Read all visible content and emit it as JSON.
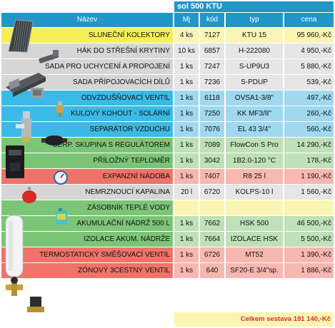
{
  "table": {
    "group_header": "sol 500 KTU",
    "headers": {
      "name": "Název",
      "mj": "Mj",
      "kod": "kód",
      "typ": "typ",
      "cena": "cena"
    },
    "rows": [
      {
        "name": "SLUNEČNÍ KOLEKTORY",
        "mj": "4 ks",
        "kod": "7127",
        "typ": "KTU 15",
        "cena": "95 960,-Kč",
        "group": "yellow"
      },
      {
        "name": "HÁK DO STŘEŠNÍ KRYTINY",
        "mj": "10 ks",
        "kod": "6857",
        "typ": "H-222080",
        "cena": "4 950,-Kč",
        "group": "gray"
      },
      {
        "name": "SADA PRO UCHYCENÍ A PROPOJENÍ",
        "mj": "1 ks",
        "kod": "7247",
        "typ": "S-UP9U3",
        "cena": "5 880,-Kč",
        "group": "gray"
      },
      {
        "name": "SADA PŘÍPOJOVACÍCH DÍLŮ",
        "mj": "1 ks",
        "kod": "7236",
        "typ": "S-PDUP",
        "cena": "539,-Kč",
        "group": "gray"
      },
      {
        "name": "ODVZDUŠŇOVACÍ VENTIL",
        "mj": "1 ks",
        "kod": "6118",
        "typ": "OVSA1-3/8\"",
        "cena": "497,-Kč",
        "group": "blue"
      },
      {
        "name": "KULOVÝ KOHOUT - SOLÁRNÍ",
        "mj": "1 ks",
        "kod": "7250",
        "typ": "KK  MF3/8\"",
        "cena": "260,-Kč",
        "group": "blue"
      },
      {
        "name": "SEPARÁTOR VZDUCHU",
        "mj": "1 ks",
        "kod": "7076",
        "typ": "EL 43 3/4\"",
        "cena": "560,-Kč",
        "group": "blue"
      },
      {
        "name": "ČERP. SKUPINA S REGULÁTOREM",
        "mj": "1 ks",
        "kod": "7089",
        "typ": "FlowCon S Pro",
        "cena": "14 290,-Kč",
        "group": "green"
      },
      {
        "name": "PŘÍLOŽNÝ TEPLOMĚR",
        "mj": "1 ks",
        "kod": "3042",
        "typ": "1B2.0-120 °C",
        "cena": "178,-Kč",
        "group": "green"
      },
      {
        "name": "EXPANZNÍ NÁDOBA",
        "mj": "1 ks",
        "kod": "7407",
        "typ": "R8 25 l",
        "cena": "1 190,-Kč",
        "group": "red"
      },
      {
        "name": "NEMRZNOUCÍ KAPALINA",
        "mj": "20 l",
        "kod": "6720",
        "typ": "KOLPS-10 l",
        "cena": "1 560,-Kč",
        "group": "gray"
      },
      {
        "name": "ZÁSOBNÍK TEPLÉ VODY",
        "mj": "",
        "kod": "",
        "typ": "",
        "cena": "",
        "group": "green-head"
      },
      {
        "name": "AKUMULAČNÍ NÁDRŽ 500 L",
        "mj": "1 ks",
        "kod": "7662",
        "typ": "HSK 500",
        "cena": "46 500,-Kč",
        "group": "green"
      },
      {
        "name": "IZOLACE AKUM. NÁDRŽE",
        "mj": "1 ks",
        "kod": "7664",
        "typ": "IZOLACE HSK",
        "cena": "5 500,-Kč",
        "group": "green"
      },
      {
        "name": "TERMOSTATICKÝ SMĚŠOVACÍ VENTIL",
        "mj": "1 ks",
        "kod": "6726",
        "typ": "MT52",
        "cena": "1 390,-Kč",
        "group": "red"
      },
      {
        "name": "ZÓNOVÝ 3CESTNÝ VENTIL",
        "mj": "1 ks",
        "kod": "640",
        "typ": "SF20-E 3/4\"sp.",
        "cena": "1 886,-Kč",
        "group": "red"
      }
    ],
    "total": "Celkem sestava 181 140,-Kč"
  },
  "colors": {
    "header": "#2196c9",
    "yellow": "#f6ef55",
    "yellow_light": "#fbf5b5",
    "gray": "#d6d6d6",
    "gray_light": "#e6e6e6",
    "blue": "#3cb9e6",
    "blue_light": "#9fd8ef",
    "green": "#7cc576",
    "green_light": "#bfe0b9",
    "red": "#ef7368",
    "red_light": "#f8b7b1",
    "total_text": "#e0301e"
  },
  "icons": [
    "solar-collector-icon",
    "roof-hook-icon",
    "mounting-set-icon",
    "connection-parts-icon",
    "air-vent-valve-icon",
    "ball-valve-icon",
    "air-separator-icon",
    "pump-group-icon",
    "thermometer-icon",
    "expansion-vessel-icon",
    "antifreeze-canister-icon",
    "water-tank-icon",
    "mixing-valve-icon",
    "zone-valve-icon"
  ]
}
